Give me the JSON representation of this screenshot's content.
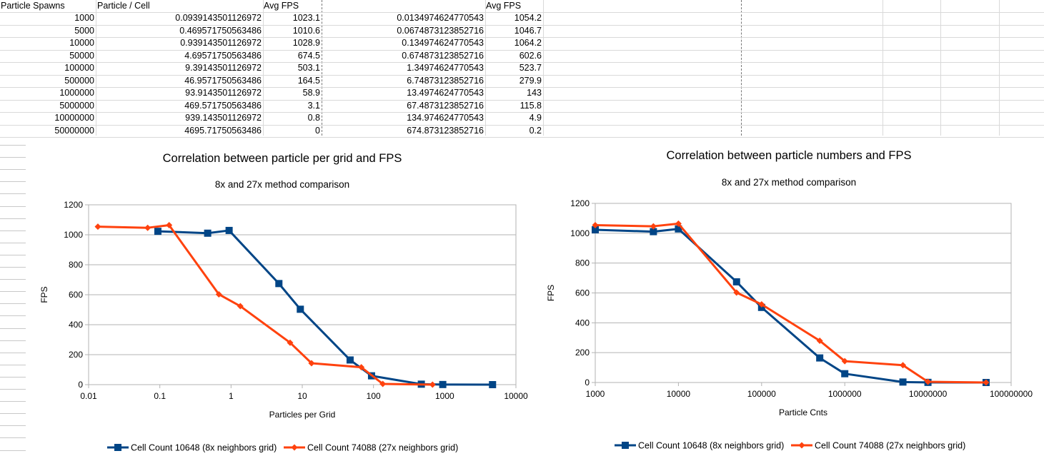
{
  "sheet": {
    "headers": [
      "Particle Spawns",
      "Particle / Cell",
      "Avg FPS",
      "",
      "Avg FPS"
    ],
    "rows": [
      [
        "1000",
        "0.0939143501126972",
        "1023.1",
        "0.0134974624770543",
        "1054.2"
      ],
      [
        "5000",
        "0.469571750563486",
        "1010.6",
        "0.0674873123852716",
        "1046.7"
      ],
      [
        "10000",
        "0.939143501126972",
        "1028.9",
        "0.134974624770543",
        "1064.2"
      ],
      [
        "50000",
        "4.69571750563486",
        "674.5",
        "0.674873123852716",
        "602.6"
      ],
      [
        "100000",
        "9.3914350112697​2",
        "503.1",
        "1.34974624770543",
        "523.7"
      ],
      [
        "500000",
        "46.9571750563486",
        "164.5",
        "6.74873123852716",
        "279.9"
      ],
      [
        "1000000",
        "93.9143501126972",
        "58.9",
        "13.4974624770543",
        "143"
      ],
      [
        "5000000",
        "469.571750563486",
        "3.1",
        "67.4873123852716",
        "115.8"
      ],
      [
        "10000000",
        "939.143501126972",
        "0.8",
        "134.974624770543",
        "4.9"
      ],
      [
        "50000000",
        "4695.71750563486",
        "0",
        "674.873123852716",
        "0.2"
      ]
    ]
  },
  "chart_data": [
    {
      "type": "scatter",
      "title": "Correlation between particle per grid and FPS",
      "subtitle": "8x and 27x method comparison",
      "xlabel": "Particles per Grid",
      "ylabel": "FPS",
      "xscale": "log",
      "xlim": [
        0.01,
        10000
      ],
      "ylim": [
        0,
        1200
      ],
      "xticks": [
        "0.01",
        "0.1",
        "1",
        "10",
        "100",
        "1000",
        "10000"
      ],
      "yticks": [
        "0",
        "200",
        "400",
        "600",
        "800",
        "1000",
        "1200"
      ],
      "grid": true,
      "legend_position": "bottom",
      "series": [
        {
          "name": "Cell Count 10648 (8x neighbors grid)",
          "color": "#004586",
          "marker": "square",
          "x": [
            0.0939143501126972,
            0.469571750563486,
            0.939143501126972,
            4.69571750563486,
            9.39143501126972,
            46.9571750563486,
            93.9143501126972,
            469.571750563486,
            939.143501126972,
            4695.71750563486
          ],
          "y": [
            1023.1,
            1010.6,
            1028.9,
            674.5,
            503.1,
            164.5,
            58.9,
            3.1,
            0.8,
            0
          ]
        },
        {
          "name": "Cell Count 74088 (27x neighbors grid)",
          "color": "#ff420e",
          "marker": "diamond",
          "x": [
            0.0134974624770543,
            0.0674873123852716,
            0.134974624770543,
            0.674873123852716,
            1.34974624770543,
            6.74873123852716,
            13.4974624770543,
            67.4873123852716,
            134.974624770543,
            674.873123852716
          ],
          "y": [
            1054.2,
            1046.7,
            1064.2,
            602.6,
            523.7,
            279.9,
            143,
            115.8,
            4.9,
            0.2
          ]
        }
      ]
    },
    {
      "type": "scatter",
      "title": "Correlation between particle numbers and FPS",
      "subtitle": "8x and 27x method comparison",
      "xlabel": "Particle Cnts",
      "ylabel": "FPS",
      "xscale": "log",
      "xlim": [
        1000,
        100000000
      ],
      "ylim": [
        0,
        1200
      ],
      "xticks": [
        "1000",
        "10000",
        "100000",
        "1000000",
        "10000000",
        "100000000"
      ],
      "yticks": [
        "0",
        "200",
        "400",
        "600",
        "800",
        "1000",
        "1200"
      ],
      "grid": true,
      "legend_position": "bottom",
      "series": [
        {
          "name": "Cell Count 10648 (8x neighbors grid)",
          "color": "#004586",
          "marker": "square",
          "x": [
            1000,
            5000,
            10000,
            50000,
            100000,
            500000,
            1000000,
            5000000,
            10000000,
            50000000
          ],
          "y": [
            1023.1,
            1010.6,
            1028.9,
            674.5,
            503.1,
            164.5,
            58.9,
            3.1,
            0.8,
            0
          ]
        },
        {
          "name": "Cell Count 74088 (27x neighbors grid)",
          "color": "#ff420e",
          "marker": "diamond",
          "x": [
            1000,
            5000,
            10000,
            50000,
            100000,
            500000,
            1000000,
            5000000,
            10000000,
            50000000
          ],
          "y": [
            1054.2,
            1046.7,
            1064.2,
            602.6,
            523.7,
            279.9,
            143,
            115.8,
            4.9,
            0.2
          ]
        }
      ]
    }
  ]
}
